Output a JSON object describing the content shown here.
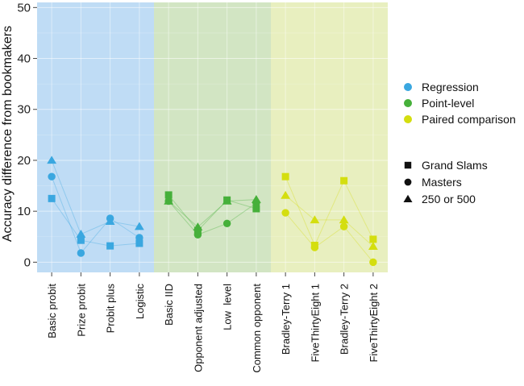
{
  "chart_data": {
    "type": "scatter",
    "title": "",
    "xlabel": "",
    "ylabel": "Accuracy difference from bookmakers",
    "ylim": [
      -2,
      51
    ],
    "yticks": [
      0,
      10,
      20,
      30,
      40,
      50
    ],
    "grid": true,
    "categories": [
      "Basic probit",
      "Prize probit",
      "Probit plus",
      "Logistic",
      "Basic IID",
      "Opponent adjusted",
      "Low  level",
      "Common opponent",
      "Bradley-Terry 1",
      "FiveThirtyEight 1",
      "Bradley-Terry 2",
      "FiveThirtyEight 2"
    ],
    "groups": [
      {
        "name": "Regression",
        "color": "#3aa7e0",
        "bg": "#bfdcf5",
        "categories": [
          0,
          1,
          2,
          3
        ]
      },
      {
        "name": "Point-level",
        "color": "#46b03a",
        "bg": "#d2e5c3",
        "categories": [
          4,
          5,
          6,
          7
        ]
      },
      {
        "name": "Paired comparison",
        "color": "#d4de0f",
        "bg": "#e8efbf",
        "categories": [
          8,
          9,
          10,
          11
        ]
      }
    ],
    "series": [
      {
        "name": "Grand Slams",
        "shape": "square",
        "values": [
          12.5,
          4.3,
          3.2,
          3.7,
          13.2,
          6.2,
          12.2,
          10.5,
          16.8,
          3.3,
          16.0,
          4.5
        ]
      },
      {
        "name": "Masters",
        "shape": "circle",
        "values": [
          16.8,
          1.8,
          8.6,
          4.8,
          12.0,
          5.4,
          7.6,
          11.6,
          9.7,
          2.9,
          7.0,
          0.0
        ]
      },
      {
        "name": "250 or 500",
        "shape": "triangle",
        "values": [
          20.0,
          5.5,
          8.0,
          7.0,
          12.0,
          6.9,
          12.0,
          12.3,
          13.1,
          8.3,
          8.3,
          3.1
        ]
      }
    ],
    "legend": {
      "position": "right",
      "color_title": "",
      "shape_title": "",
      "color_entries": [
        "Regression",
        "Point-level",
        "Paired comparison"
      ],
      "shape_entries": [
        "Grand Slams",
        "Masters",
        "250 or 500"
      ]
    }
  }
}
